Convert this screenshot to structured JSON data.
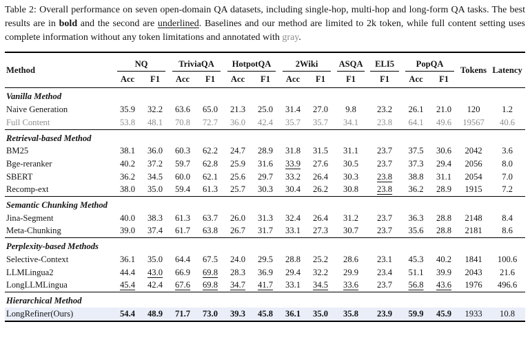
{
  "caption": {
    "part1": "Table 2: Overall performance on seven open-domain QA datasets, including single-hop, multi-hop and long-form QA tasks. The best results are in ",
    "bold_word": "bold",
    "part2": " and the second are ",
    "underlined_word": "underlined",
    "part3": ". Baselines and our method are limited to 2k token, while full content setting uses complete information without any token limitations and annotated with ",
    "gray_word": "gray",
    "part4": "."
  },
  "colors": {
    "highlight_row_bg": "#e9eef9",
    "gray_text": "#8d8d8d",
    "rule_color": "#000000"
  },
  "table": {
    "method_header": "Method",
    "tokens_header": "Tokens",
    "latency_header": "Latency",
    "groups": [
      {
        "label": "NQ",
        "subs": [
          "Acc",
          "F1"
        ]
      },
      {
        "label": "TriviaQA",
        "subs": [
          "Acc",
          "F1"
        ]
      },
      {
        "label": "HotpotQA",
        "subs": [
          "Acc",
          "F1"
        ]
      },
      {
        "label": "2Wiki",
        "subs": [
          "Acc",
          "F1"
        ]
      },
      {
        "label": "ASQA",
        "subs": [
          "F1"
        ]
      },
      {
        "label": "ELI5",
        "subs": [
          "F1"
        ]
      },
      {
        "label": "PopQA",
        "subs": [
          "Acc",
          "F1"
        ]
      }
    ],
    "sections": [
      {
        "title": "Vanilla Method",
        "rows": [
          {
            "method": "Naive Generation",
            "cells": [
              "35.9",
              "32.2",
              "63.6",
              "65.0",
              "21.3",
              "25.0",
              "31.4",
              "27.0",
              "9.8",
              "23.2",
              "26.1",
              "21.0",
              "120",
              "1.2"
            ],
            "u": [],
            "b": [],
            "gray": false,
            "highlight": false
          },
          {
            "method": "Full Content",
            "cells": [
              "53.8",
              "48.1",
              "70.8",
              "72.7",
              "36.0",
              "42.4",
              "35.7",
              "35.7",
              "34.1",
              "23.8",
              "64.1",
              "49.6",
              "19567",
              "40.6"
            ],
            "u": [],
            "b": [],
            "gray": true,
            "highlight": false
          }
        ]
      },
      {
        "title": "Retrieval-based Method",
        "rows": [
          {
            "method": "BM25",
            "cells": [
              "38.1",
              "36.0",
              "60.3",
              "62.2",
              "24.7",
              "28.9",
              "31.8",
              "31.5",
              "31.1",
              "23.7",
              "37.5",
              "30.6",
              "2042",
              "3.6"
            ],
            "u": [],
            "b": [],
            "gray": false,
            "highlight": false
          },
          {
            "method": "Bge-reranker",
            "cells": [
              "40.2",
              "37.2",
              "59.7",
              "62.8",
              "25.9",
              "31.6",
              "33.9",
              "27.6",
              "30.5",
              "23.7",
              "37.3",
              "29.4",
              "2056",
              "8.0"
            ],
            "u": [
              6
            ],
            "b": [],
            "gray": false,
            "highlight": false
          },
          {
            "method": "SBERT",
            "cells": [
              "36.2",
              "34.5",
              "60.0",
              "62.1",
              "25.6",
              "29.7",
              "33.2",
              "26.4",
              "30.3",
              "23.8",
              "38.8",
              "31.1",
              "2054",
              "7.0"
            ],
            "u": [
              9
            ],
            "b": [],
            "gray": false,
            "highlight": false
          },
          {
            "method": "Recomp-ext",
            "cells": [
              "38.0",
              "35.0",
              "59.4",
              "61.3",
              "25.7",
              "30.3",
              "30.4",
              "26.2",
              "30.8",
              "23.8",
              "36.2",
              "28.9",
              "1915",
              "7.2"
            ],
            "u": [
              9
            ],
            "b": [],
            "gray": false,
            "highlight": false
          }
        ]
      },
      {
        "title": "Semantic Chunking Method",
        "rows": [
          {
            "method": "Jina-Segment",
            "cells": [
              "40.0",
              "38.3",
              "61.3",
              "63.7",
              "26.0",
              "31.3",
              "32.4",
              "26.4",
              "31.2",
              "23.7",
              "36.3",
              "28.8",
              "2148",
              "8.4"
            ],
            "u": [],
            "b": [],
            "gray": false,
            "highlight": false
          },
          {
            "method": "Meta-Chunking",
            "cells": [
              "39.0",
              "37.4",
              "61.7",
              "63.8",
              "26.7",
              "31.7",
              "33.1",
              "27.3",
              "30.7",
              "23.7",
              "35.6",
              "28.8",
              "2181",
              "8.6"
            ],
            "u": [],
            "b": [],
            "gray": false,
            "highlight": false
          }
        ]
      },
      {
        "title": "Perplexity-based Methods",
        "rows": [
          {
            "method": "Selective-Context",
            "cells": [
              "36.1",
              "35.0",
              "64.4",
              "67.5",
              "24.0",
              "29.5",
              "28.8",
              "25.2",
              "28.6",
              "23.1",
              "45.3",
              "40.2",
              "1841",
              "100.6"
            ],
            "u": [],
            "b": [],
            "gray": false,
            "highlight": false
          },
          {
            "method": "LLMLingua2",
            "cells": [
              "44.4",
              "43.0",
              "66.9",
              "69.8",
              "28.3",
              "36.9",
              "29.4",
              "32.2",
              "29.9",
              "23.4",
              "51.1",
              "39.9",
              "2043",
              "21.6"
            ],
            "u": [
              1,
              3
            ],
            "b": [],
            "gray": false,
            "highlight": false
          },
          {
            "method": "LongLLMLingua",
            "cells": [
              "45.4",
              "42.4",
              "67.6",
              "69.8",
              "34.7",
              "41.7",
              "33.1",
              "34.5",
              "33.6",
              "23.7",
              "56.8",
              "43.6",
              "1976",
              "496.6"
            ],
            "u": [
              0,
              2,
              3,
              4,
              5,
              7,
              8,
              10,
              11
            ],
            "b": [],
            "gray": false,
            "highlight": false
          }
        ]
      },
      {
        "title": "Hierarchical Method",
        "rows": [
          {
            "method": "LongRefiner(Ours)",
            "cells": [
              "54.4",
              "48.9",
              "71.7",
              "73.0",
              "39.3",
              "45.8",
              "36.1",
              "35.0",
              "35.8",
              "23.9",
              "59.9",
              "45.9",
              "1933",
              "10.8"
            ],
            "u": [],
            "b": [
              0,
              1,
              2,
              3,
              4,
              5,
              6,
              7,
              8,
              9,
              10,
              11
            ],
            "gray": false,
            "highlight": true
          }
        ]
      }
    ]
  }
}
